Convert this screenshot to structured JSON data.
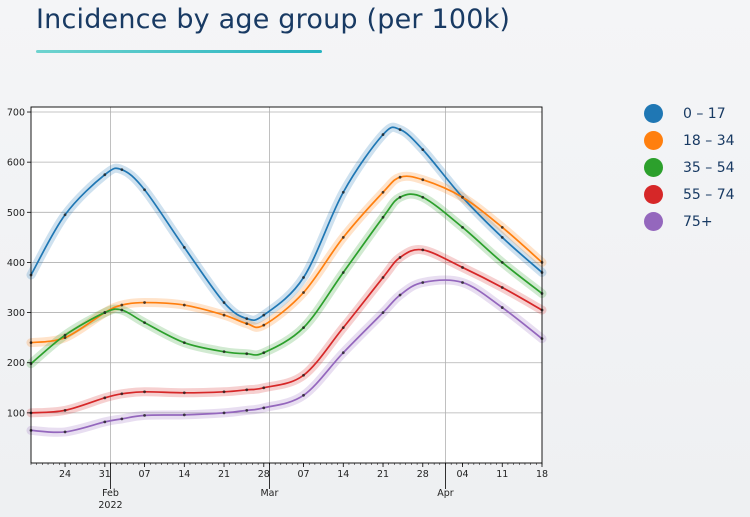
{
  "slide": {
    "title": "Incidence by age group (per 100k)"
  },
  "chart_data": {
    "type": "line",
    "title": "",
    "xlabel": "",
    "ylabel": "",
    "x_axis": {
      "range": [
        "2022-01-18",
        "2022-04-18"
      ],
      "tick_labels": [
        "24",
        "31",
        "07",
        "14",
        "21",
        "28",
        "07",
        "14",
        "21",
        "28",
        "04",
        "11",
        "18"
      ],
      "month_labels": [
        "Feb",
        "Mar",
        "Apr"
      ],
      "year_label": "2022"
    },
    "ylim": [
      0,
      710
    ],
    "yticks": [
      100,
      200,
      300,
      400,
      500,
      600,
      700
    ],
    "grid": true,
    "legend_position": "right, outside plot",
    "x": [
      "2022-01-18",
      "2022-01-24",
      "2022-01-31",
      "2022-02-03",
      "2022-02-07",
      "2022-02-14",
      "2022-02-21",
      "2022-02-25",
      "2022-02-28",
      "2022-03-07",
      "2022-03-14",
      "2022-03-21",
      "2022-03-24",
      "2022-03-28",
      "2022-04-04",
      "2022-04-11",
      "2022-04-18"
    ],
    "series": [
      {
        "name": "0 – 17",
        "color": "#1f77b4",
        "values": [
          375,
          495,
          575,
          585,
          545,
          430,
          320,
          288,
          295,
          370,
          540,
          655,
          665,
          625,
          530,
          450,
          380
        ]
      },
      {
        "name": "18 – 34",
        "color": "#ff7f0e",
        "values": [
          240,
          250,
          300,
          315,
          320,
          315,
          295,
          278,
          275,
          340,
          450,
          540,
          570,
          565,
          530,
          470,
          400
        ]
      },
      {
        "name": "35 – 54",
        "color": "#2ca02c",
        "values": [
          198,
          255,
          300,
          305,
          280,
          240,
          222,
          218,
          220,
          270,
          380,
          490,
          530,
          530,
          470,
          400,
          338
        ]
      },
      {
        "name": "55 – 74",
        "color": "#d62728",
        "values": [
          100,
          105,
          130,
          138,
          142,
          140,
          142,
          146,
          150,
          175,
          270,
          370,
          410,
          425,
          390,
          350,
          305
        ]
      },
      {
        "name": "75+",
        "color": "#9467bd",
        "values": [
          65,
          62,
          82,
          88,
          95,
          96,
          100,
          105,
          110,
          135,
          220,
          300,
          335,
          360,
          360,
          310,
          248
        ]
      }
    ]
  }
}
